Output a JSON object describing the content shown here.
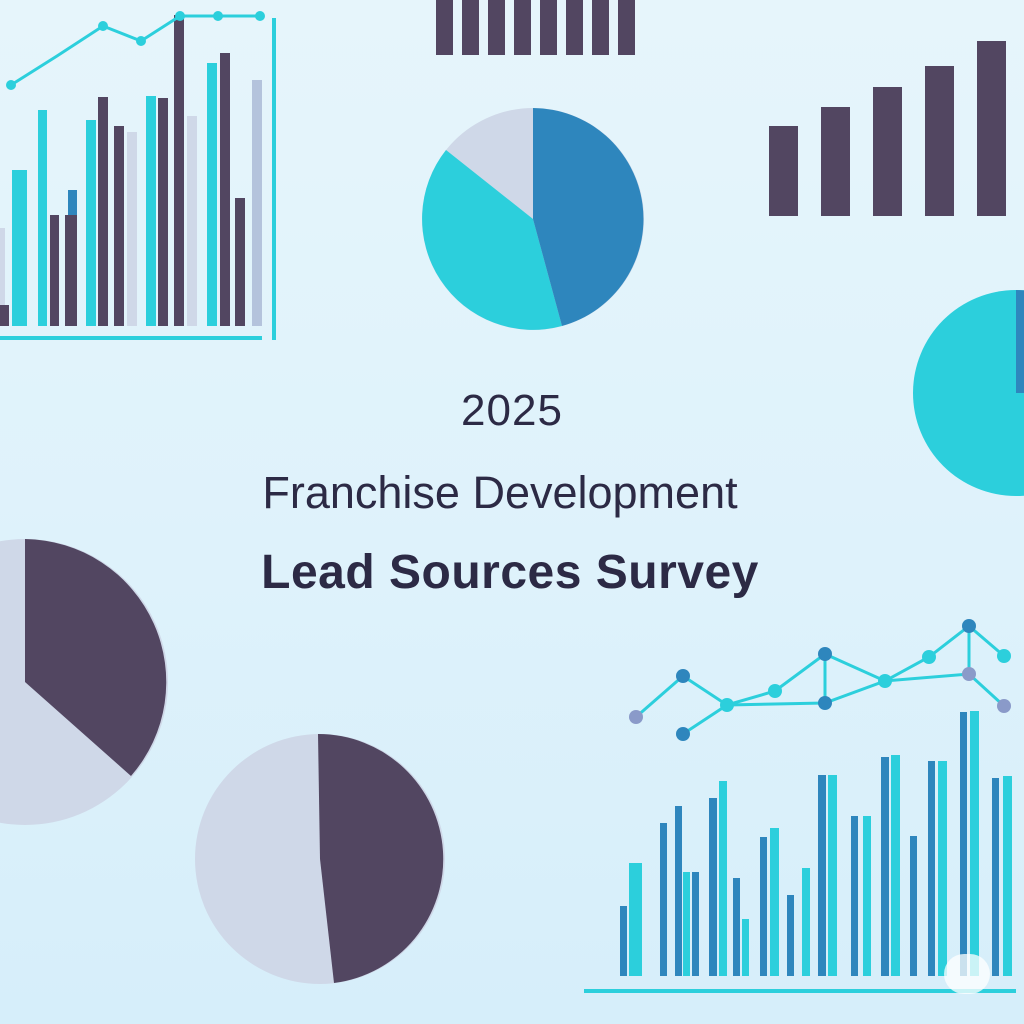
{
  "title": {
    "year": "2025",
    "line1": "Franchise Development",
    "line2": "Lead Sources Survey"
  },
  "colors": {
    "background": "#e2f4fb",
    "dark_purple": "#524661",
    "teal": "#2ccfdc",
    "blue": "#2e86bd",
    "light_gray": "#cfd8e8",
    "text": "#2c2a45"
  },
  "decorations": {
    "top_left_bars": [
      0.1,
      0.55,
      0.6,
      0.65,
      0.45,
      0.75,
      0.8,
      0.95,
      0.82,
      0.75,
      0.4,
      0.9,
      0.92,
      1.0,
      0.65,
      0.87,
      0.8,
      0.85,
      0.6
    ],
    "top_center_bars": [
      1,
      1,
      1,
      1,
      1,
      1,
      1,
      1
    ],
    "top_right_bars": [
      0.5,
      0.6,
      0.75,
      0.85,
      1.0
    ],
    "top_pie_fractions": [
      0.46,
      0.4,
      0.14
    ],
    "bottom_center_pie_fractions": [
      0.49,
      0.51
    ],
    "bottom_right_bars": [
      0.25,
      0.4,
      0.55,
      0.65,
      0.45,
      0.6,
      0.85,
      0.35,
      0.5,
      0.55,
      0.3,
      0.45,
      0.7,
      0.85,
      0.9,
      0.55,
      0.65,
      0.95,
      0.85,
      0.7,
      1.0,
      0.75
    ]
  }
}
